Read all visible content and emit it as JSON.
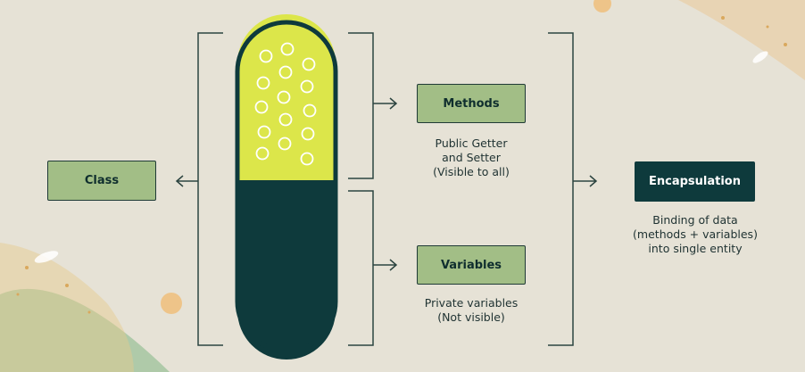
{
  "nodes": {
    "class": "Class",
    "methods": "Methods",
    "variables": "Variables",
    "encapsulation": "Encapsulation"
  },
  "captions": {
    "methods": [
      "Public Getter",
      "and Setter",
      "(Visible to all)"
    ],
    "variables": [
      "Private variables",
      "(Not visible)"
    ],
    "encapsulation": [
      "Binding of data",
      "(methods + variables)",
      "into single entity"
    ]
  },
  "colors": {
    "background": "#e6e2d6",
    "pill_top": "#dce64a",
    "pill_bottom": "#0e3a3c",
    "box_green": "#a2be86",
    "box_dark": "#0e3a3c",
    "line": "#2c4440"
  }
}
